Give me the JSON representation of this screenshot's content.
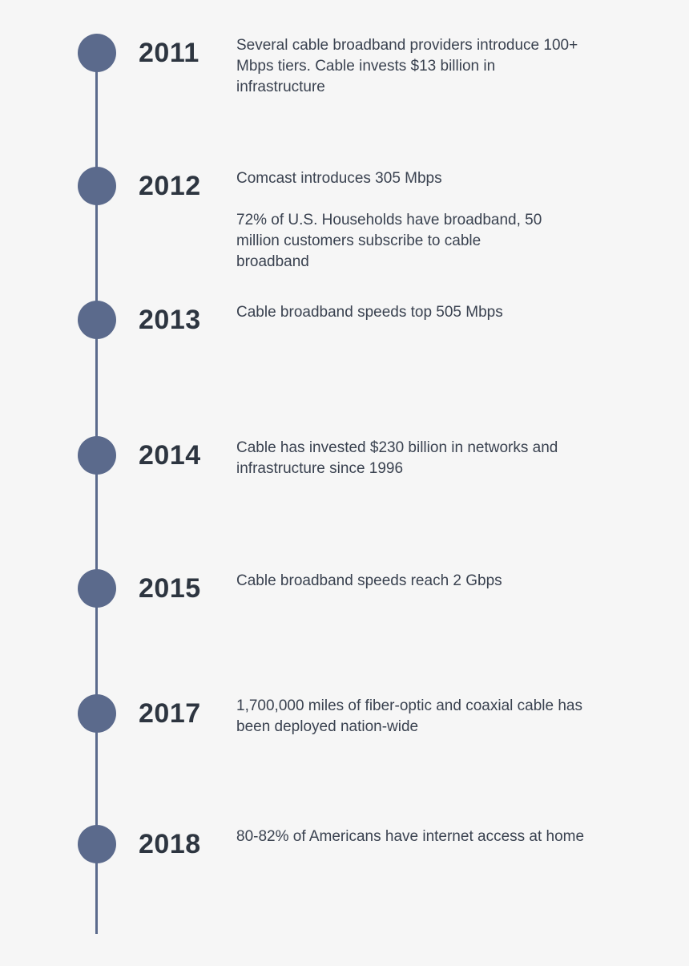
{
  "timeline": {
    "events": [
      {
        "year": "2011",
        "paragraphs": [
          "Several cable broadband providers introduce 100+ Mbps tiers. Cable invests $13 billion in infrastructure"
        ]
      },
      {
        "year": "2012",
        "paragraphs": [
          "Comcast introduces 305 Mbps",
          "72% of U.S. Households have broadband, 50 million customers subscribe to cable broadband"
        ]
      },
      {
        "year": "2013",
        "paragraphs": [
          "Cable broadband speeds top 505 Mbps"
        ]
      },
      {
        "year": "2014",
        "paragraphs": [
          "Cable has invested $230 billion in networks and infrastructure since 1996"
        ]
      },
      {
        "year": "2015",
        "paragraphs": [
          "Cable broadband speeds reach 2 Gbps"
        ]
      },
      {
        "year": "2017",
        "paragraphs": [
          "1,700,000 miles of fiber-optic and coaxial cable has been deployed nation-wide"
        ]
      },
      {
        "year": "2018",
        "paragraphs": [
          "80-82% of Americans have internet access at home"
        ]
      }
    ]
  }
}
